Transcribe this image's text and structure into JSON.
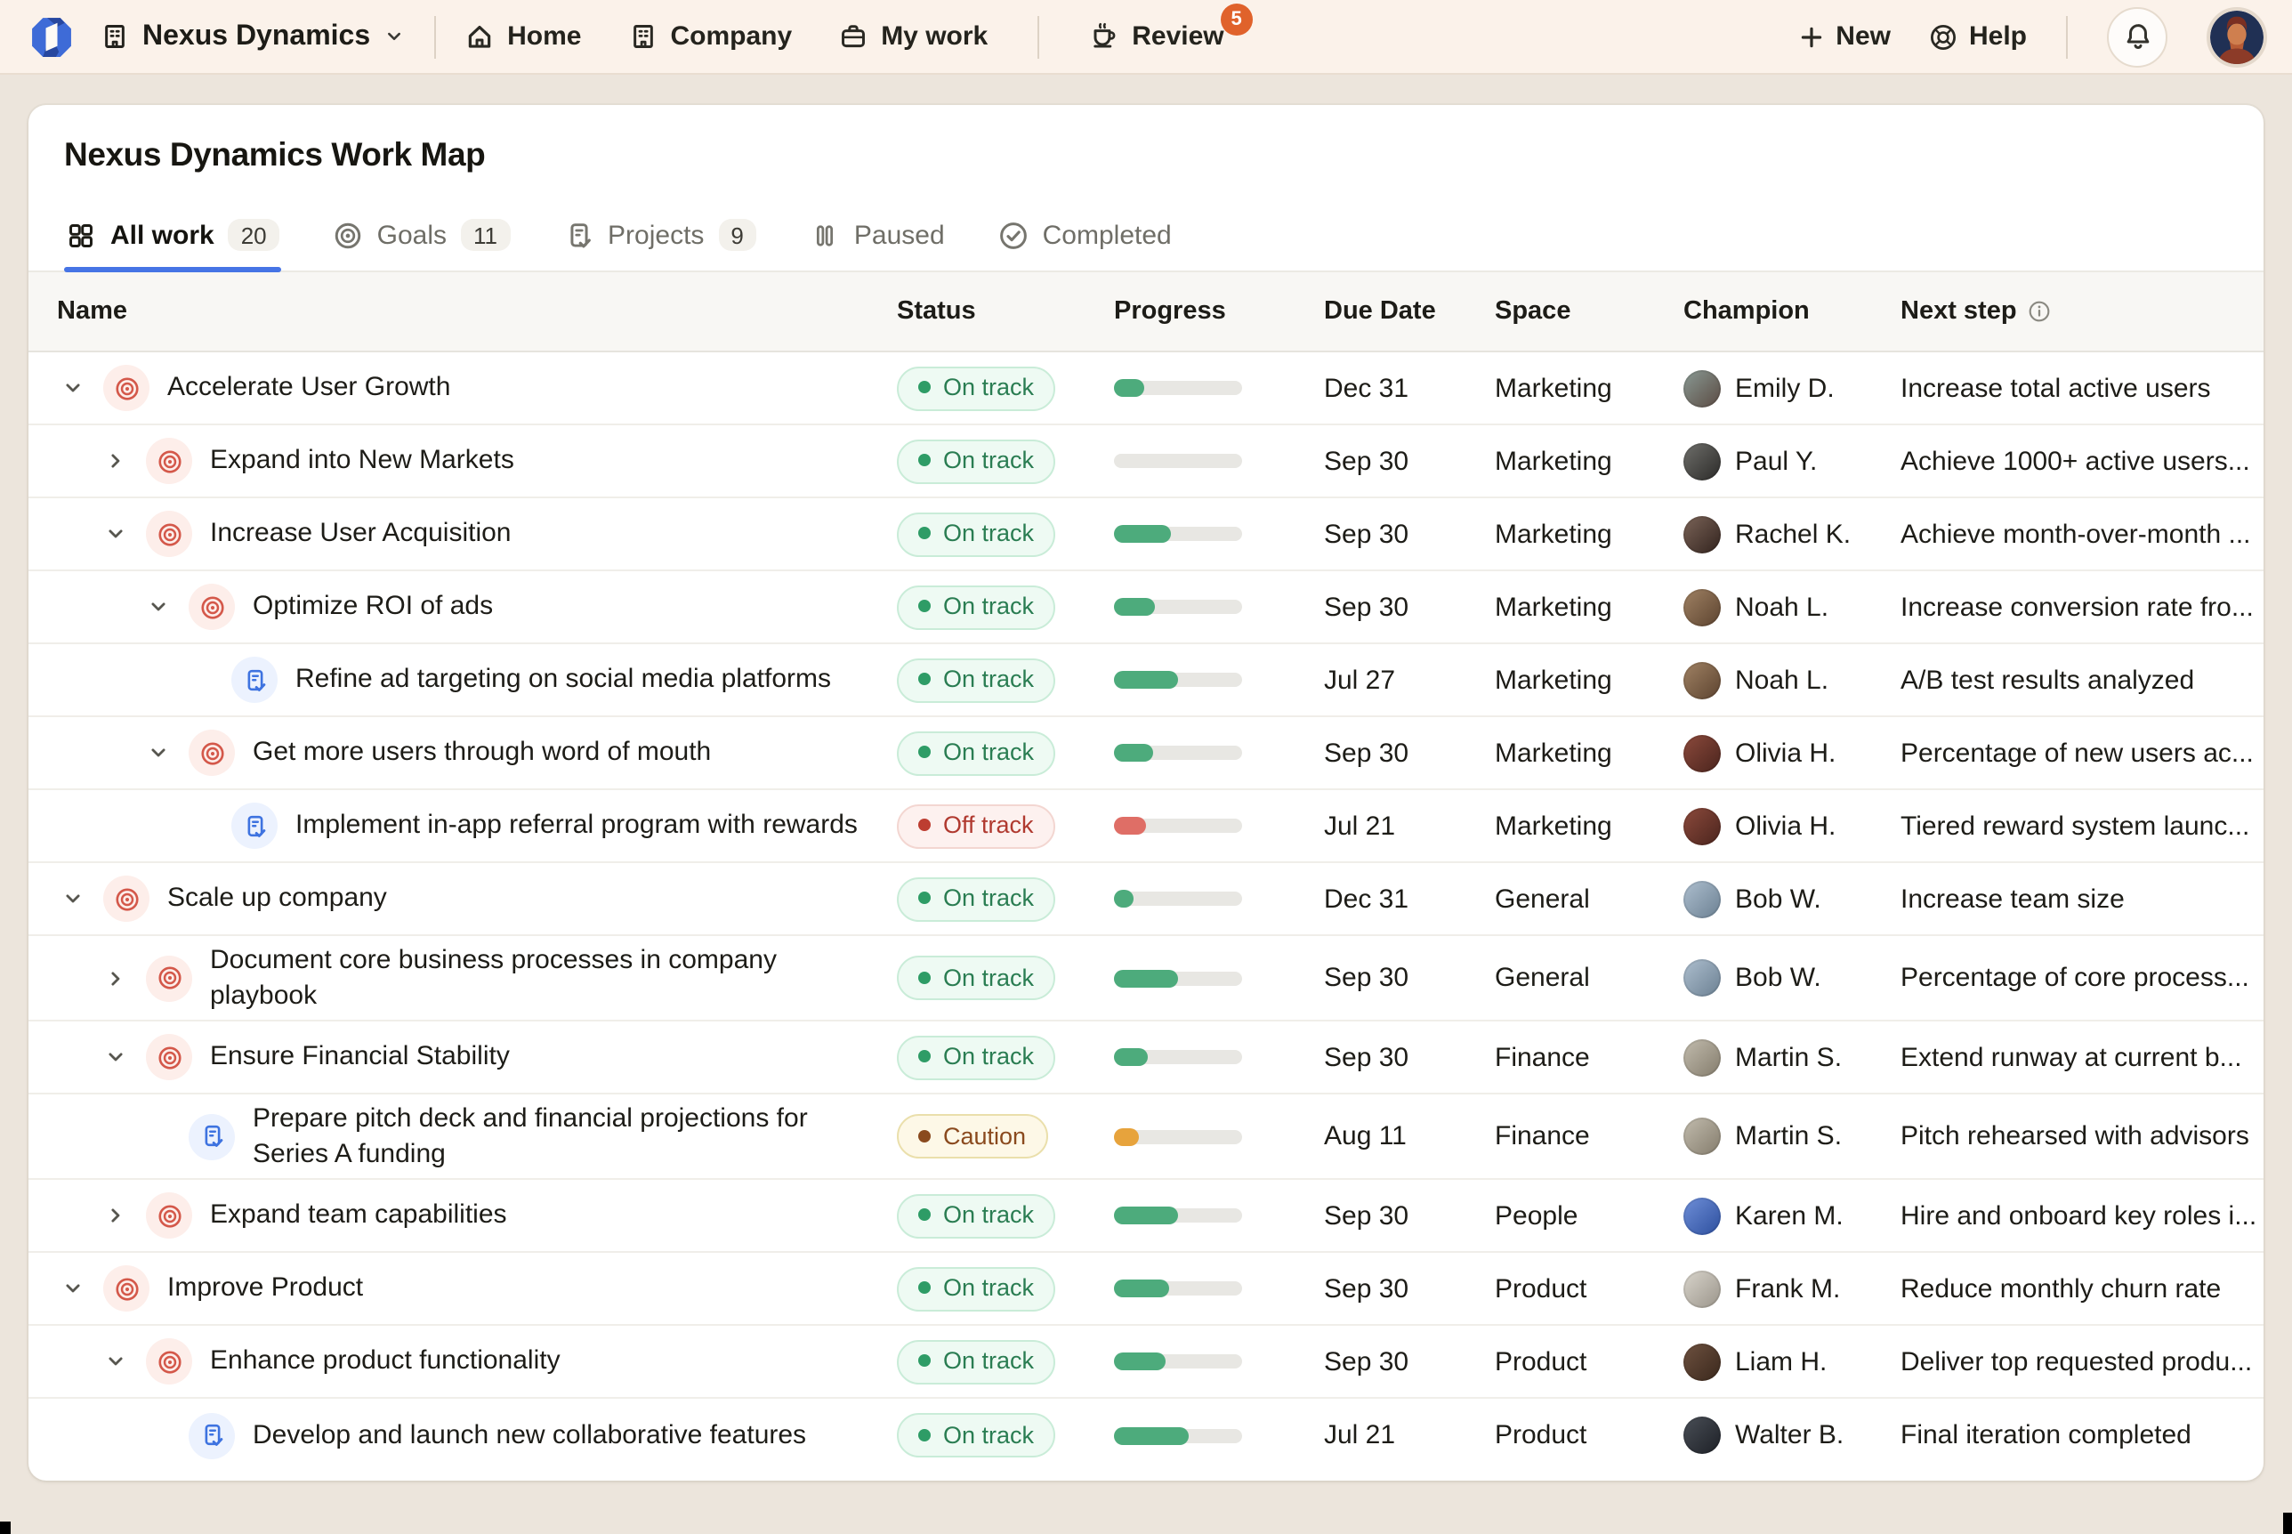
{
  "topbar": {
    "brand": "Nexus Dynamics",
    "nav": [
      {
        "label": "Home",
        "icon": "home-icon"
      },
      {
        "label": "Company",
        "icon": "building-icon"
      },
      {
        "label": "My work",
        "icon": "briefcase-icon"
      },
      {
        "label": "Review",
        "icon": "coffee-icon",
        "badge": "5"
      }
    ],
    "actions": {
      "new_label": "New",
      "help_label": "Help"
    }
  },
  "page": {
    "title": "Nexus Dynamics Work Map"
  },
  "tabs": [
    {
      "label": "All work",
      "count": "20",
      "icon": "grid-icon",
      "active": true
    },
    {
      "label": "Goals",
      "count": "11",
      "icon": "target-icon"
    },
    {
      "label": "Projects",
      "count": "9",
      "icon": "clipboard-check-icon"
    },
    {
      "label": "Paused",
      "icon": "pause-icon"
    },
    {
      "label": "Completed",
      "icon": "check-circle-icon"
    }
  ],
  "colors": {
    "accent_blue": "#4674e5",
    "review_badge": "#e0622b",
    "progress_green": "#4dab7c",
    "progress_red": "#df6e66",
    "progress_orange": "#e7a33c"
  },
  "table": {
    "columns": [
      "Name",
      "Status",
      "Progress",
      "Due Date",
      "Space",
      "Champion",
      "Next step"
    ],
    "rows": [
      {
        "level": 0,
        "chevron": "down",
        "icon": "goal",
        "name": "Accelerate User Growth",
        "status": {
          "label": "On track",
          "type": "on-track"
        },
        "progress": {
          "value": 24,
          "type": "green"
        },
        "due": "Dec 31",
        "space": "Marketing",
        "champion": {
          "name": "Emily D.",
          "colors": [
            "#8a9a94",
            "#5a4a42"
          ]
        },
        "next_step": "Increase total active users"
      },
      {
        "level": 1,
        "chevron": "right",
        "icon": "goal",
        "name": "Expand into New Markets",
        "status": {
          "label": "On track",
          "type": "on-track"
        },
        "progress": {
          "value": 0,
          "type": "green"
        },
        "due": "Sep 30",
        "space": "Marketing",
        "champion": {
          "name": "Paul Y.",
          "colors": [
            "#6f6f6b",
            "#2b2a28"
          ]
        },
        "next_step": "Achieve 1000+ active users..."
      },
      {
        "level": 1,
        "chevron": "down",
        "icon": "goal",
        "name": "Increase User Acquisition",
        "status": {
          "label": "On track",
          "type": "on-track"
        },
        "progress": {
          "value": 45,
          "type": "green"
        },
        "due": "Sep 30",
        "space": "Marketing",
        "champion": {
          "name": "Rachel K.",
          "colors": [
            "#7b6458",
            "#32231e"
          ]
        },
        "next_step": "Achieve month-over-month ..."
      },
      {
        "level": 2,
        "chevron": "down",
        "icon": "goal",
        "name": "Optimize ROI of ads",
        "status": {
          "label": "On track",
          "type": "on-track"
        },
        "progress": {
          "value": 32,
          "type": "green"
        },
        "due": "Sep 30",
        "space": "Marketing",
        "champion": {
          "name": "Noah L.",
          "colors": [
            "#a08264",
            "#5c432f"
          ]
        },
        "next_step": "Increase conversion rate fro..."
      },
      {
        "level": 3,
        "chevron": null,
        "icon": "project",
        "name": "Refine ad targeting on social media platforms",
        "status": {
          "label": "On track",
          "type": "on-track"
        },
        "progress": {
          "value": 50,
          "type": "green"
        },
        "due": "Jul 27",
        "space": "Marketing",
        "champion": {
          "name": "Noah L.",
          "colors": [
            "#a08264",
            "#5c432f"
          ]
        },
        "next_step": "A/B test results analyzed"
      },
      {
        "level": 2,
        "chevron": "down",
        "icon": "goal",
        "name": "Get more users through word of mouth",
        "status": {
          "label": "On track",
          "type": "on-track"
        },
        "progress": {
          "value": 30,
          "type": "green"
        },
        "due": "Sep 30",
        "space": "Marketing",
        "champion": {
          "name": "Olivia H.",
          "colors": [
            "#8c4a3c",
            "#4a241d"
          ]
        },
        "next_step": "Percentage of new users ac..."
      },
      {
        "level": 3,
        "chevron": null,
        "icon": "project",
        "name": "Implement in-app referral program with rewards",
        "status": {
          "label": "Off track",
          "type": "off-track"
        },
        "progress": {
          "value": 25,
          "type": "red"
        },
        "due": "Jul 21",
        "space": "Marketing",
        "champion": {
          "name": "Olivia H.",
          "colors": [
            "#8c4a3c",
            "#4a241d"
          ]
        },
        "next_step": "Tiered reward system launc..."
      },
      {
        "level": 0,
        "chevron": "down",
        "icon": "goal",
        "name": "Scale up company",
        "status": {
          "label": "On track",
          "type": "on-track"
        },
        "progress": {
          "value": 15,
          "type": "green"
        },
        "due": "Dec 31",
        "space": "General",
        "champion": {
          "name": "Bob W.",
          "colors": [
            "#aebfcf",
            "#6b8092"
          ]
        },
        "next_step": "Increase team size"
      },
      {
        "level": 1,
        "chevron": "right",
        "icon": "goal",
        "name": "Document core business processes in company playbook",
        "status": {
          "label": "On track",
          "type": "on-track"
        },
        "progress": {
          "value": 50,
          "type": "green"
        },
        "due": "Sep 30",
        "space": "General",
        "champion": {
          "name": "Bob W.",
          "colors": [
            "#aebfcf",
            "#6b8092"
          ]
        },
        "next_step": "Percentage of core process..."
      },
      {
        "level": 1,
        "chevron": "down",
        "icon": "goal",
        "name": "Ensure Financial Stability",
        "status": {
          "label": "On track",
          "type": "on-track"
        },
        "progress": {
          "value": 27,
          "type": "green"
        },
        "due": "Sep 30",
        "space": "Finance",
        "champion": {
          "name": "Martin S.",
          "colors": [
            "#c2bcae",
            "#847c6c"
          ]
        },
        "next_step": "Extend runway at current b..."
      },
      {
        "level": 2,
        "chevron": null,
        "icon": "project",
        "name": "Prepare pitch deck and financial projections for Series A funding",
        "status": {
          "label": "Caution",
          "type": "caution"
        },
        "progress": {
          "value": 19,
          "type": "orange"
        },
        "due": "Aug 11",
        "space": "Finance",
        "champion": {
          "name": "Martin S.",
          "colors": [
            "#c2bcae",
            "#847c6c"
          ]
        },
        "next_step": "Pitch rehearsed with advisors"
      },
      {
        "level": 1,
        "chevron": "right",
        "icon": "goal",
        "name": "Expand team capabilities",
        "status": {
          "label": "On track",
          "type": "on-track"
        },
        "progress": {
          "value": 50,
          "type": "green"
        },
        "due": "Sep 30",
        "space": "People",
        "champion": {
          "name": "Karen M.",
          "colors": [
            "#6f8fd8",
            "#2d4f9e"
          ]
        },
        "next_step": "Hire and onboard key roles i..."
      },
      {
        "level": 0,
        "chevron": "down",
        "icon": "goal",
        "name": "Improve Product",
        "status": {
          "label": "On track",
          "type": "on-track"
        },
        "progress": {
          "value": 43,
          "type": "green"
        },
        "due": "Sep 30",
        "space": "Product",
        "champion": {
          "name": "Frank M.",
          "colors": [
            "#d9d5cc",
            "#9a948a"
          ]
        },
        "next_step": "Reduce monthly churn rate"
      },
      {
        "level": 1,
        "chevron": "down",
        "icon": "goal",
        "name": "Enhance product functionality",
        "status": {
          "label": "On track",
          "type": "on-track"
        },
        "progress": {
          "value": 40,
          "type": "green"
        },
        "due": "Sep 30",
        "space": "Product",
        "champion": {
          "name": "Liam H.",
          "colors": [
            "#6e5140",
            "#3a281c"
          ]
        },
        "next_step": "Deliver top requested produ..."
      },
      {
        "level": 2,
        "chevron": null,
        "icon": "project",
        "name": "Develop and launch new collaborative features",
        "status": {
          "label": "On track",
          "type": "on-track"
        },
        "progress": {
          "value": 59,
          "type": "green"
        },
        "due": "Jul 21",
        "space": "Product",
        "champion": {
          "name": "Walter B.",
          "colors": [
            "#4a4f57",
            "#1d2026"
          ]
        },
        "next_step": "Final iteration completed"
      }
    ]
  }
}
